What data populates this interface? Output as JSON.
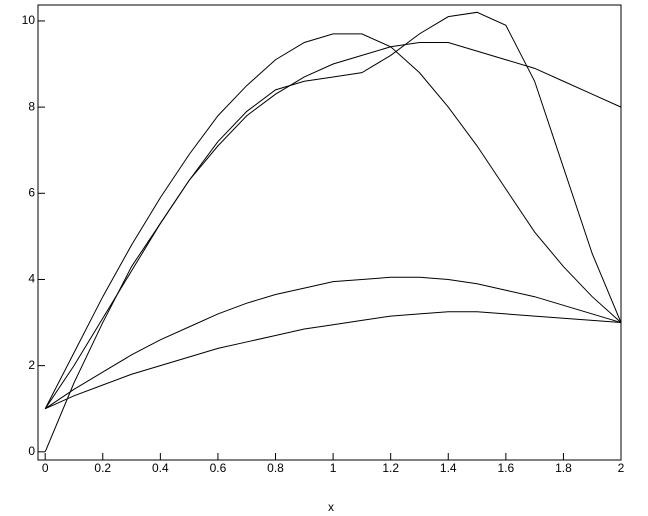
{
  "chart_data": {
    "type": "line",
    "x_label": "x",
    "color": "#000000",
    "x": [
      0,
      0.1,
      0.2,
      0.3,
      0.4,
      0.5,
      0.6,
      0.7,
      0.8,
      0.9,
      1.0,
      1.1,
      1.2,
      1.3,
      1.4,
      1.5,
      1.6,
      1.7,
      1.8,
      1.9,
      2.0
    ],
    "series": [
      {
        "values": [
          1,
          2.3,
          3.6,
          4.8,
          5.9,
          6.9,
          7.8,
          8.5,
          9.1,
          9.5,
          9.7,
          9.7,
          9.4,
          8.8,
          8.0,
          7.1,
          6.1,
          5.1,
          4.3,
          3.6,
          3.0
        ]
      },
      {
        "values": [
          1,
          2.0,
          3.1,
          4.2,
          5.3,
          6.3,
          7.2,
          7.9,
          8.4,
          8.6,
          8.7,
          8.8,
          9.2,
          9.7,
          10.1,
          10.2,
          9.9,
          8.6,
          6.6,
          4.6,
          3.0
        ]
      },
      {
        "values": [
          0,
          1.6,
          3.0,
          4.3,
          5.3,
          6.3,
          7.1,
          7.8,
          8.3,
          8.7,
          9.0,
          9.2,
          9.4,
          9.5,
          9.5,
          9.3,
          9.1,
          8.9,
          8.6,
          8.3,
          8.0
        ]
      },
      {
        "values": [
          1,
          1.45,
          1.85,
          2.25,
          2.6,
          2.9,
          3.2,
          3.45,
          3.65,
          3.8,
          3.95,
          4.0,
          4.05,
          4.05,
          4.0,
          3.9,
          3.75,
          3.6,
          3.4,
          3.2,
          3.0
        ]
      },
      {
        "values": [
          1,
          1.3,
          1.55,
          1.8,
          2.0,
          2.2,
          2.4,
          2.55,
          2.7,
          2.85,
          2.95,
          3.05,
          3.15,
          3.2,
          3.25,
          3.25,
          3.2,
          3.15,
          3.1,
          3.05,
          3.0
        ]
      }
    ],
    "xlim": [
      -0.025,
      2
    ],
    "ylim": [
      -0.19,
      10.37
    ],
    "xticks": [
      0,
      0.2,
      0.4,
      0.6,
      0.8,
      1,
      1.2,
      1.4,
      1.6,
      1.8,
      2
    ],
    "yticks": [
      0,
      2,
      4,
      6,
      8,
      10
    ]
  }
}
